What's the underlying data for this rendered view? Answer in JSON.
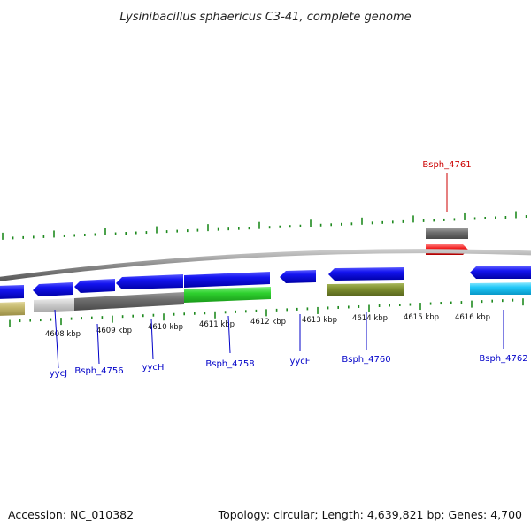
{
  "title": "Lysinibacillus sphaericus C3-41, complete genome",
  "footer": {
    "accession": "Accession: NC_010382",
    "summary": "Topology: circular; Length: 4,639,821 bp; Genes: 4,700"
  },
  "colors": {
    "backbone": "#8a8a8a",
    "tick": "#1f8a1f",
    "forward_gene": "#1010e0",
    "highlight_gene": "#ee1010",
    "label_blue": "#0000c8",
    "label_red": "#cc0000"
  },
  "ticks": [
    {
      "label": "4608 kbp"
    },
    {
      "label": "4609 kbp"
    },
    {
      "label": "4610 kbp"
    },
    {
      "label": "4611 kbp"
    },
    {
      "label": "4612 kbp"
    },
    {
      "label": "4613 kbp"
    },
    {
      "label": "4614 kbp"
    },
    {
      "label": "4615 kbp"
    },
    {
      "label": "4616 kbp"
    }
  ],
  "gene_labels": [
    {
      "text": "yycJ",
      "color": "blue"
    },
    {
      "text": "Bsph_4756",
      "color": "blue"
    },
    {
      "text": "yycH",
      "color": "blue"
    },
    {
      "text": "Bsph_4758",
      "color": "blue"
    },
    {
      "text": "yycF",
      "color": "blue"
    },
    {
      "text": "Bsph_4760",
      "color": "blue"
    },
    {
      "text": "Bsph_4762",
      "color": "blue"
    },
    {
      "text": "Bsph_4761",
      "color": "red"
    }
  ]
}
